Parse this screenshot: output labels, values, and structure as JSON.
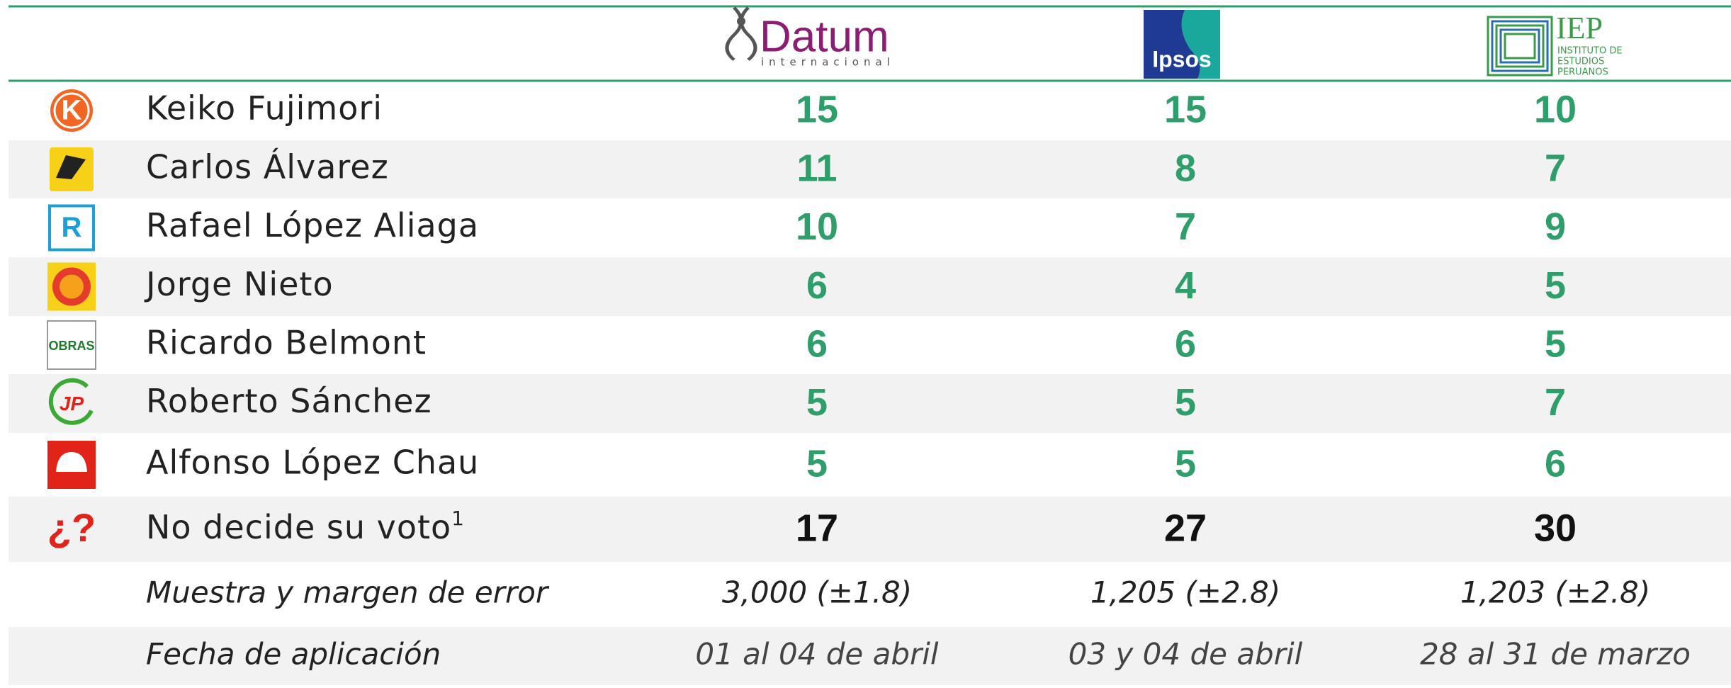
{
  "header": {
    "pollsters": [
      {
        "name": "Datum",
        "sub": [
          "internacional"
        ]
      },
      {
        "name": "Ipsos"
      },
      {
        "name": "IEP",
        "sub": [
          "INSTITUTO DE",
          "ESTUDIOS",
          "PERUANOS"
        ]
      }
    ]
  },
  "table": {
    "rows": [
      {
        "icon": "K",
        "name": "Keiko Fujimori",
        "values": [
          "15",
          "15",
          "10"
        ]
      },
      {
        "name": "Carlos Álvarez",
        "values": [
          "11",
          "8",
          "7"
        ]
      },
      {
        "icon": "R",
        "name": "Rafael López Aliaga",
        "values": [
          "10",
          "7",
          "9"
        ]
      },
      {
        "name": "Jorge Nieto",
        "values": [
          "6",
          "4",
          "5"
        ]
      },
      {
        "icon": "OBRAS",
        "name": "Ricardo Belmont",
        "values": [
          "6",
          "6",
          "5"
        ]
      },
      {
        "icon": "JP",
        "name": "Roberto Sánchez",
        "values": [
          "5",
          "5",
          "7"
        ]
      },
      {
        "name": "Alfonso López Chau",
        "values": [
          "5",
          "5",
          "6"
        ]
      }
    ],
    "summary": {
      "icon": "¿?",
      "name": "No decide su voto",
      "note": "1",
      "values": [
        "17",
        "27",
        "30"
      ]
    },
    "footer": [
      {
        "label": "Muestra y margen de error",
        "values": [
          "3,000 (±1.8)",
          "1,205 (±2.8)",
          "1,203 (±2.8)"
        ]
      },
      {
        "label": "Fecha de aplicación",
        "values": [
          "01 al 04 de abril",
          "03 y 04 de abril",
          "28 al 31 de marzo"
        ]
      }
    ]
  }
}
